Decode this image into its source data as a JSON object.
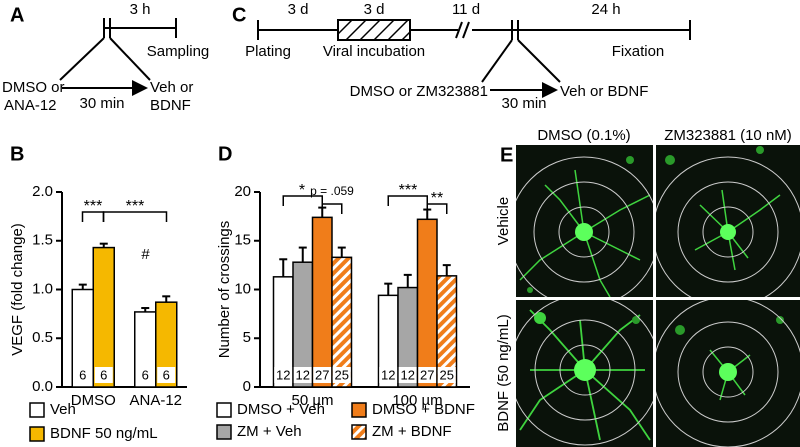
{
  "panel_a": {
    "label": "A",
    "duration": "3 h",
    "sampling": "Sampling",
    "pre_treatment": [
      "DMSO or",
      "ANA-12"
    ],
    "interval": "30 min",
    "treatment": [
      "Veh or",
      "BDNF"
    ]
  },
  "panel_c": {
    "label": "C",
    "durations": [
      "3 d",
      "3 d",
      "11 d",
      "24 h"
    ],
    "events": [
      "Plating",
      "Viral incubation",
      "Fixation"
    ],
    "pre_treatment": "DMSO or ZM323881",
    "interval": "30 min",
    "treatment": "Veh or BDNF"
  },
  "panel_e": {
    "label": "E",
    "columns": [
      "DMSO (0.1%)",
      "ZM323881 (10 nM)"
    ],
    "rows": [
      "Vehicle",
      "BDNF (50 ng/mL)"
    ]
  },
  "chart_data": [
    {
      "type": "bar",
      "panel_label": "B",
      "y_label": "VEGF (fold change)",
      "categories": [
        "DMSO",
        "ANA-12"
      ],
      "series": [
        {
          "name": "Veh",
          "color": "#ffffff",
          "values": [
            1.0,
            0.77
          ],
          "errors": [
            0.05,
            0.04
          ],
          "n": [
            6,
            6
          ]
        },
        {
          "name": "BDNF 50 ng/mL",
          "color": "#f5b800",
          "values": [
            1.43,
            0.87
          ],
          "errors": [
            0.04,
            0.06
          ],
          "n": [
            6,
            6
          ]
        }
      ],
      "ylim": [
        0,
        2
      ],
      "yticks": [
        {
          "value": 0,
          "label": "0.0"
        },
        0.5,
        {
          "value": 1,
          "label": "1.0"
        },
        1.5,
        {
          "value": 2,
          "label": "2.0"
        }
      ],
      "annotations": [
        "***",
        "***",
        "#"
      ]
    },
    {
      "type": "bar",
      "panel_label": "D",
      "y_label": "Number of crossings",
      "categories": [
        "50 µm",
        "100 µm"
      ],
      "series": [
        {
          "name": "DMSO + Veh",
          "color": "#ffffff",
          "values": [
            11.3,
            9.4
          ],
          "errors": [
            1.8,
            1.2
          ],
          "n": [
            12,
            12
          ]
        },
        {
          "name": "ZM + Veh",
          "color": "#a6a6a6",
          "values": [
            12.8,
            10.2
          ],
          "errors": [
            1.5,
            1.3
          ],
          "n": [
            12,
            12
          ]
        },
        {
          "name": "DMSO + BDNF",
          "color": "#f07d1a",
          "values": [
            17.4,
            17.2
          ],
          "errors": [
            1.0,
            1.0
          ],
          "n": [
            27,
            27
          ]
        },
        {
          "name": "ZM + BDNF",
          "color": "#f07d1a",
          "hatch": true,
          "values": [
            13.3,
            11.4
          ],
          "errors": [
            1.0,
            1.1
          ],
          "n": [
            25,
            25
          ]
        }
      ],
      "ylim": [
        0,
        20
      ],
      "yticks": [
        0,
        5,
        10,
        15,
        20
      ],
      "annotations": [
        "*",
        "p = .059",
        "***",
        "**"
      ]
    }
  ]
}
